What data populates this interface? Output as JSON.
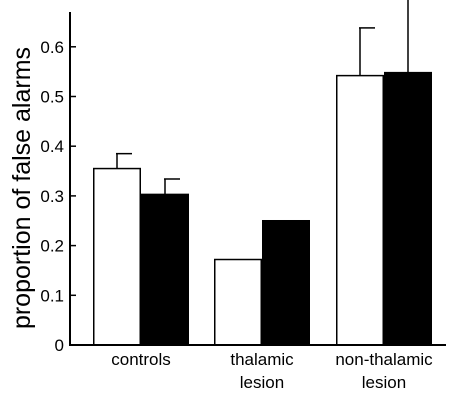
{
  "chart_data": {
    "type": "bar",
    "title": "",
    "xlabel": "",
    "ylabel": "proportion of false alarms",
    "ylim": [
      0,
      0.67
    ],
    "yticks": [
      0,
      0.1,
      0.2,
      0.3,
      0.4,
      0.5,
      0.6
    ],
    "ytick_labels": [
      "0",
      "0.1",
      "0.2",
      "0.3",
      "0.4",
      "0.5",
      "0.6"
    ],
    "grid": false,
    "categories": [
      [
        "controls"
      ],
      [
        "thalamic",
        "lesion"
      ],
      [
        "non-thalamic",
        "lesion"
      ]
    ],
    "series": [
      {
        "color": "#ffffff",
        "values": [
          0.355,
          0.172,
          0.542
        ],
        "errors": [
          0.03,
          null,
          0.096
        ]
      },
      {
        "color": "#000000",
        "values": [
          0.303,
          0.25,
          0.548
        ],
        "errors": [
          0.031,
          null,
          0.149
        ]
      }
    ]
  }
}
